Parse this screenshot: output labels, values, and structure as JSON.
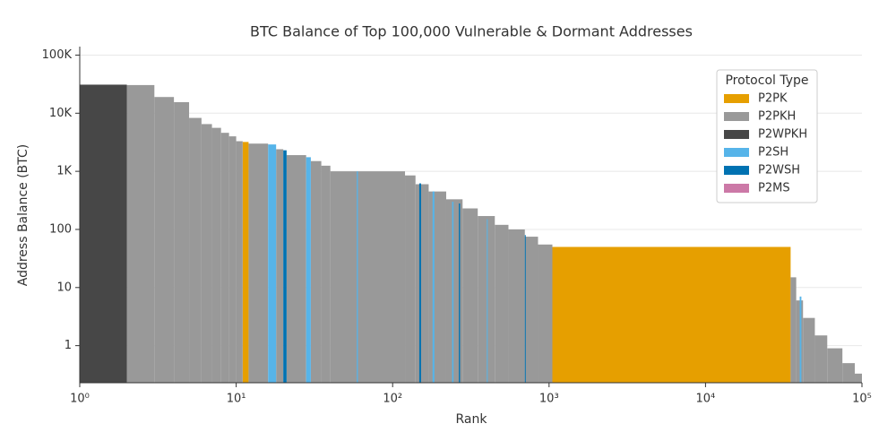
{
  "chart_data": {
    "type": "step-bar",
    "title": "BTC Balance of Top 100,000 Vulnerable & Dormant Addresses",
    "xlabel": "Rank",
    "ylabel": "Address Balance (BTC)",
    "xscale": "log",
    "yscale": "log",
    "xlim": [
      1,
      100000
    ],
    "ylim": [
      0.23,
      140000
    ],
    "xticks": [
      {
        "value": 1,
        "label": "10⁰"
      },
      {
        "value": 10,
        "label": "10¹"
      },
      {
        "value": 100,
        "label": "10²"
      },
      {
        "value": 1000,
        "label": "10³"
      },
      {
        "value": 10000,
        "label": "10⁴"
      },
      {
        "value": 100000,
        "label": "10⁵"
      }
    ],
    "yticks": [
      1,
      10,
      100,
      {
        "value": 1000,
        "label": "1K"
      },
      {
        "value": 10000,
        "label": "10K"
      },
      {
        "value": 100000,
        "label": "100K"
      }
    ],
    "grid": true,
    "legend_title": "Protocol Type",
    "legend_position": "upper right",
    "series": [
      {
        "name": "P2PK",
        "color": "#E69F00",
        "x": [
          11,
          1050
        ],
        "x_end": [
          12,
          35000
        ],
        "values": [
          3200,
          50
        ]
      },
      {
        "name": "P2PKH",
        "color": "#999999",
        "x": [
          2,
          3,
          4,
          5,
          6,
          7,
          8,
          9,
          10,
          12,
          18,
          21,
          30,
          35,
          40,
          120,
          140,
          170,
          220,
          280,
          350,
          450,
          550,
          700,
          850,
          35000,
          38000,
          42000,
          50000,
          60000,
          75000,
          90000
        ],
        "x_end": [
          3,
          4,
          5,
          6,
          7,
          8,
          9,
          10,
          11,
          16,
          20,
          28,
          35,
          40,
          120,
          140,
          170,
          220,
          280,
          350,
          450,
          550,
          700,
          850,
          1050,
          38000,
          42000,
          50000,
          60000,
          75000,
          90000,
          100000
        ],
        "values": [
          30500,
          19000,
          15500,
          8300,
          6500,
          5600,
          4600,
          4000,
          3300,
          3000,
          2400,
          1900,
          1500,
          1250,
          1000,
          850,
          600,
          450,
          330,
          230,
          170,
          120,
          100,
          75,
          55,
          15,
          6,
          3,
          1.5,
          0.9,
          0.5,
          0.33
        ]
      },
      {
        "name": "P2WPKH",
        "color": "#474747",
        "x": [
          1
        ],
        "x_end": [
          2
        ],
        "values": [
          31000
        ]
      },
      {
        "name": "P2SH",
        "color": "#56B4E9",
        "x": [
          16,
          28,
          59,
          180,
          240,
          400,
          40000
        ],
        "x_end": [
          18,
          30,
          60,
          185,
          245,
          405,
          41000
        ],
        "values": [
          2900,
          1750,
          1000,
          450,
          300,
          150,
          7
        ]
      },
      {
        "name": "P2WSH",
        "color": "#0072B2",
        "x": [
          20,
          148,
          265,
          700
        ],
        "x_end": [
          21,
          152,
          270,
          705
        ],
        "values": [
          2300,
          620,
          280,
          80
        ]
      },
      {
        "name": "P2MS",
        "color": "#CC79A7",
        "x": [],
        "x_end": [],
        "values": []
      }
    ]
  }
}
